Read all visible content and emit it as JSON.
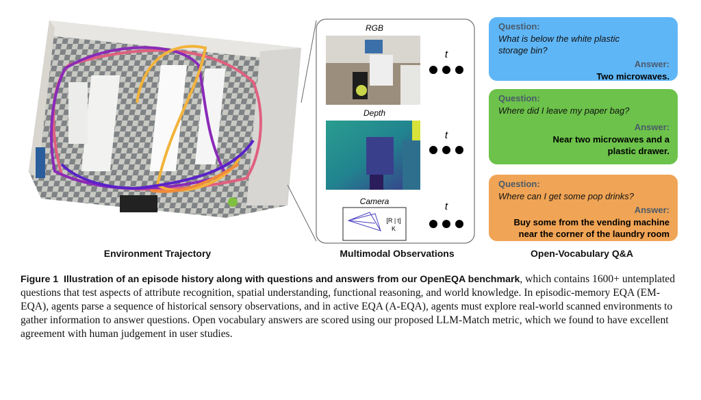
{
  "figure": {
    "panels": [
      {
        "label": "Environment Trajectory"
      },
      {
        "label": "Multimodal Observations"
      },
      {
        "label": "Open-Vocabulary Q&A"
      }
    ],
    "observations": [
      {
        "label": "RGB",
        "time": "t"
      },
      {
        "label": "Depth",
        "time": "t"
      },
      {
        "label": "Camera",
        "time": "t"
      }
    ],
    "camera_matrix": {
      "extrinsics": "[R | t]",
      "intrinsics": "K"
    },
    "qa": [
      {
        "question_label": "Question:",
        "question": "What is below the white plastic storage bin?",
        "answer_label": "Answer:",
        "answer": "Two microwaves."
      },
      {
        "question_label": "Question:",
        "question": "Where did I leave my paper bag?",
        "answer_label": "Answer:",
        "answer": "Near two microwaves and a plastic drawer."
      },
      {
        "question_label": "Question:",
        "question": "Where can I get some pop drinks?",
        "answer_label": "Answer:",
        "answer": "Buy some from the vending machine near the corner of the laundry room"
      }
    ],
    "caption": {
      "label": "Figure 1",
      "lead": "Illustration of an episode history along with questions and answers from our OpenEQA benchmark",
      "body": ", which contains 1600+ untemplated questions that test aspects of attribute recognition, spatial understanding, functional reasoning, and world knowledge. In episodic-memory EQA (EM-EQA), agents parse a sequence of historical sensory observations, and in active EQA (A-EQA), agents must explore real-world scanned environments to gather information to answer questions. Open vocabulary answers are scored using our proposed LLM-Match metric, which we found to have excellent agreement with human judgement in user studies."
    }
  }
}
